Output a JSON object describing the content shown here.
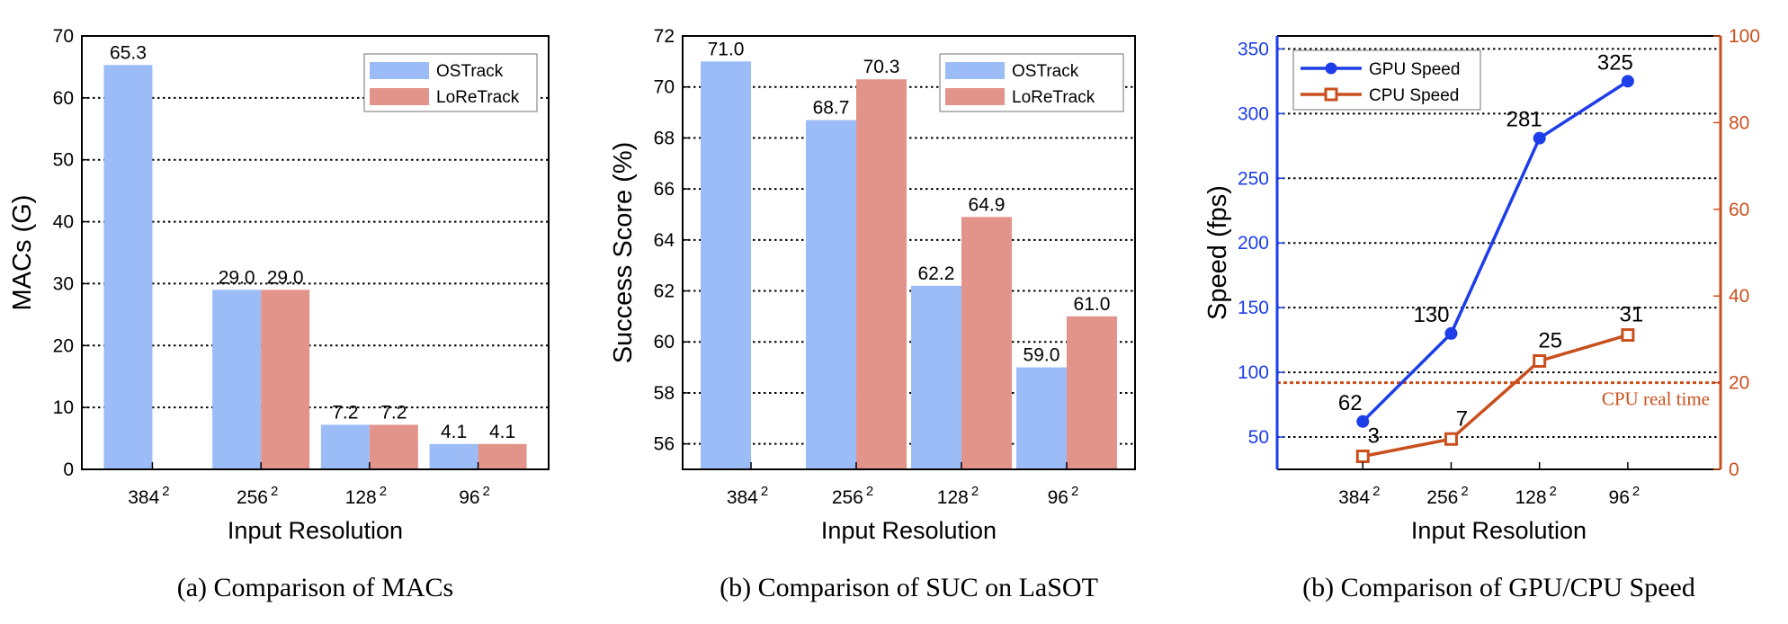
{
  "colors": {
    "ostrack": "#9bbcf7",
    "loretrack": "#e3948a",
    "gpu": "#1d3ee8",
    "cpu": "#c9501e",
    "axis": "#000000"
  },
  "chart_data": [
    {
      "type": "bar",
      "title": "",
      "caption": "(a) Comparison of MACs",
      "xlabel": "Input Resolution",
      "ylabel": "MACs (G)",
      "ylim": [
        0,
        70
      ],
      "yticks": [
        "0",
        "10",
        "20",
        "30",
        "40",
        "50",
        "60",
        "70"
      ],
      "ytick_values": [
        0,
        10,
        20,
        30,
        40,
        50,
        60,
        70
      ],
      "categories": [
        {
          "base": "384",
          "sup": "2"
        },
        {
          "base": "256",
          "sup": "2"
        },
        {
          "base": "128",
          "sup": "2"
        },
        {
          "base": "96",
          "sup": "2"
        }
      ],
      "grid": true,
      "legend_position": "top-right",
      "series": [
        {
          "name": "OSTrack",
          "color_key": "ostrack",
          "values": [
            65.3,
            29.0,
            7.2,
            4.1
          ],
          "labels": [
            "65.3",
            "29.0",
            "7.2",
            "4.1"
          ]
        },
        {
          "name": "LoReTrack",
          "color_key": "loretrack",
          "values": [
            null,
            29.0,
            7.2,
            4.1
          ],
          "labels": [
            "",
            "29.0",
            "7.2",
            "4.1"
          ]
        }
      ]
    },
    {
      "type": "bar",
      "title": "",
      "caption": "(b) Comparison of SUC on LaSOT",
      "xlabel": "Input Resolution",
      "ylabel": "Success Score (%)",
      "ylim": [
        55,
        72
      ],
      "yticks": [
        "56",
        "58",
        "60",
        "62",
        "64",
        "66",
        "68",
        "70",
        "72"
      ],
      "ytick_values": [
        56,
        58,
        60,
        62,
        64,
        66,
        68,
        70,
        72
      ],
      "categories": [
        {
          "base": "384",
          "sup": "2"
        },
        {
          "base": "256",
          "sup": "2"
        },
        {
          "base": "128",
          "sup": "2"
        },
        {
          "base": "96",
          "sup": "2"
        }
      ],
      "grid": true,
      "legend_position": "top-right",
      "series": [
        {
          "name": "OSTrack",
          "color_key": "ostrack",
          "values": [
            71.0,
            68.7,
            62.2,
            59.0
          ],
          "labels": [
            "71.0",
            "68.7",
            "62.2",
            "59.0"
          ]
        },
        {
          "name": "LoReTrack",
          "color_key": "loretrack",
          "values": [
            null,
            70.3,
            64.9,
            61.0
          ],
          "labels": [
            "",
            "70.3",
            "64.9",
            "61.0"
          ]
        }
      ]
    },
    {
      "type": "line",
      "title": "",
      "caption": "(b) Comparison of GPU/CPU Speed",
      "xlabel": "Input Resolution",
      "ylabel": "Speed (fps)",
      "ylim": [
        25,
        360
      ],
      "yticks": [
        "50",
        "100",
        "150",
        "200",
        "250",
        "300",
        "350"
      ],
      "ytick_values": [
        50,
        100,
        150,
        200,
        250,
        300,
        350
      ],
      "y2lim": [
        0,
        100
      ],
      "y2ticks": [
        "0",
        "20",
        "40",
        "60",
        "80",
        "100"
      ],
      "y2tick_values": [
        0,
        20,
        40,
        60,
        80,
        100
      ],
      "categories": [
        {
          "base": "384",
          "sup": "2"
        },
        {
          "base": "256",
          "sup": "2"
        },
        {
          "base": "128",
          "sup": "2"
        },
        {
          "base": "96",
          "sup": "2"
        }
      ],
      "grid": true,
      "legend_position": "top-left",
      "series": [
        {
          "name": "GPU Speed",
          "axis": "left",
          "marker": "circle",
          "color_key": "gpu",
          "values": [
            62,
            130,
            281,
            325
          ],
          "labels": [
            "62",
            "130",
            "281",
            "325"
          ]
        },
        {
          "name": "CPU Speed",
          "axis": "right",
          "marker": "square",
          "color_key": "cpu",
          "values": [
            3,
            7,
            25,
            31
          ],
          "labels": [
            "3",
            "7",
            "25",
            "31"
          ]
        }
      ],
      "reference_line": {
        "axis": "right",
        "value": 20,
        "label": "CPU real time",
        "color_key": "cpu"
      }
    }
  ]
}
